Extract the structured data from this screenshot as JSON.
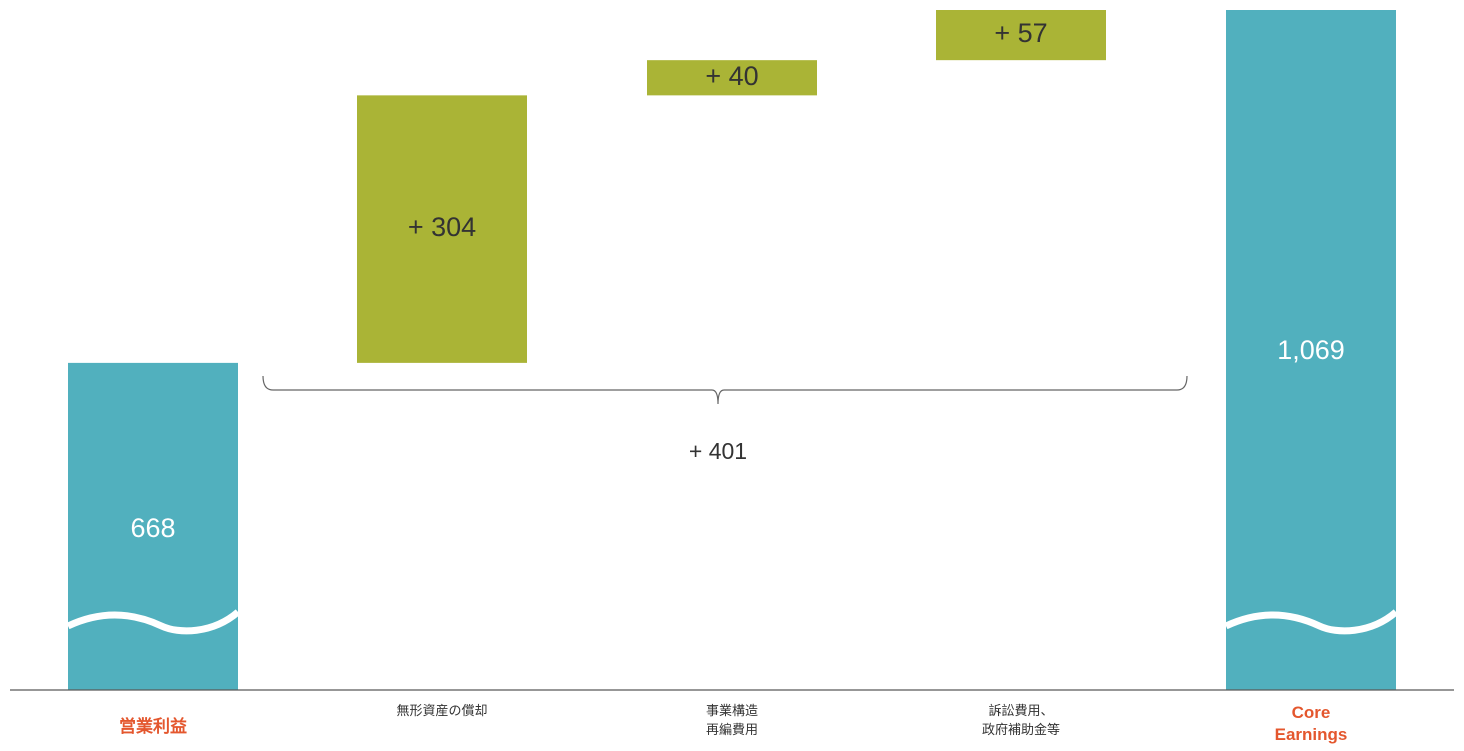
{
  "chart_data": {
    "type": "bar",
    "subtype": "waterfall",
    "categories": [
      {
        "label": "営業利益",
        "highlight": true
      },
      {
        "label": "無形資産の償却",
        "highlight": false
      },
      {
        "label": "事業構造\n再編費用",
        "highlight": false
      },
      {
        "label": "訴訟費用、\n政府補助金等",
        "highlight": false
      },
      {
        "label": "Core\nEarnings",
        "highlight": true
      }
    ],
    "bars": [
      {
        "kind": "total",
        "base": 0,
        "value": 668,
        "label": "668"
      },
      {
        "kind": "increase",
        "base": 668,
        "value": 304,
        "label": "+ 304"
      },
      {
        "kind": "increase",
        "base": 972,
        "value": 40,
        "label": "+ 40"
      },
      {
        "kind": "increase",
        "base": 1012,
        "value": 57,
        "label": "+ 57"
      },
      {
        "kind": "total",
        "base": 0,
        "value": 1069,
        "label": "1,069"
      }
    ],
    "bracket": {
      "from_category": 1,
      "to_category": 3,
      "label": "+ 401"
    },
    "axis_break": true,
    "colors": {
      "total": "#51b0be",
      "increase": "#aab436",
      "highlight_label": "#e4572e",
      "label": "#333333",
      "axis": "#595959"
    }
  }
}
